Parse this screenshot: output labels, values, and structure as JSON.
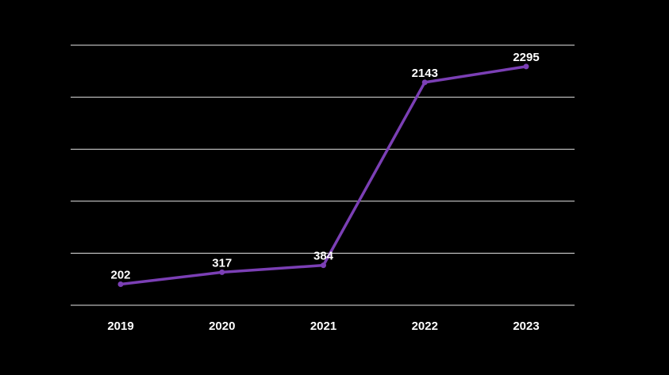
{
  "chart_data": {
    "type": "line",
    "title": "",
    "xlabel": "",
    "ylabel": "",
    "categories": [
      "2019",
      "2020",
      "2021",
      "2022",
      "2023"
    ],
    "series": [
      {
        "values": [
          202,
          317,
          384,
          2143,
          2295
        ],
        "color": "#7b3fb5"
      }
    ],
    "ylim": [
      0,
      2500
    ],
    "y_gridlines": [
      0,
      500,
      1000,
      1500,
      2000,
      2500
    ],
    "y_tick_labels_shown": false,
    "data_labels_shown": true,
    "grid": true,
    "legend": "none",
    "background": "#000000",
    "text_color": "#ffffff",
    "grid_color": "#e6e6e6"
  }
}
